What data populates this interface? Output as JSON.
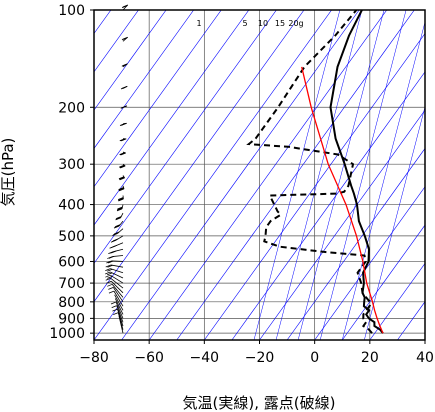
{
  "chart_data": {
    "type": "line",
    "subtype": "skew-T log-p diagram",
    "xlabel": "気温(実線), 露点(破線)",
    "ylabel": "気圧(hPa)",
    "xlim": [
      -80,
      40
    ],
    "ylim": [
      1050,
      100
    ],
    "yscale": "log",
    "x_ticks": [
      -80,
      -60,
      -40,
      -20,
      0,
      20,
      40
    ],
    "y_ticks": [
      100,
      200,
      300,
      400,
      500,
      600,
      700,
      800,
      900,
      1000
    ],
    "x_tick_labels": [
      "−80",
      "−60",
      "−40",
      "−20",
      "0",
      "20",
      "40"
    ],
    "y_tick_labels": [
      "100",
      "200",
      "300",
      "400",
      "500",
      "600",
      "700",
      "800",
      "900",
      "1000"
    ],
    "mixing_ratio_labels": [
      "1",
      "5",
      "10",
      "15",
      "20g"
    ],
    "colors": {
      "isotherm": "#0000ff",
      "parcel": "#ff0000",
      "sounding": "#000000",
      "grid": "#000000"
    },
    "series": [
      {
        "style": "solid",
        "color": "#000000",
        "points": [
          [
            1000,
            23
          ],
          [
            975,
            21
          ],
          [
            950,
            18
          ],
          [
            925,
            17
          ],
          [
            900,
            14
          ],
          [
            875,
            12
          ],
          [
            850,
            12
          ],
          [
            825,
            9
          ],
          [
            800,
            8
          ],
          [
            775,
            7
          ],
          [
            750,
            5
          ],
          [
            700,
            3
          ],
          [
            650,
            0
          ],
          [
            600,
            -1
          ],
          [
            550,
            -4
          ],
          [
            500,
            -9
          ],
          [
            450,
            -15
          ],
          [
            400,
            -20
          ],
          [
            370,
            -24
          ],
          [
            350,
            -27
          ],
          [
            300,
            -35
          ],
          [
            250,
            -45
          ],
          [
            200,
            -55
          ],
          [
            150,
            -63
          ],
          [
            120,
            -67
          ],
          [
            100,
            -69
          ]
        ]
      },
      {
        "style": "dashed",
        "color": "#000000",
        "points": [
          [
            1000,
            19
          ],
          [
            975,
            17
          ],
          [
            950,
            14
          ],
          [
            925,
            14
          ],
          [
            900,
            12
          ],
          [
            875,
            11
          ],
          [
            850,
            11
          ],
          [
            820,
            11
          ],
          [
            800,
            10
          ],
          [
            750,
            5
          ],
          [
            700,
            2
          ],
          [
            650,
            -2
          ],
          [
            600,
            -2
          ],
          [
            575,
            -4
          ],
          [
            560,
            -20
          ],
          [
            540,
            -37
          ],
          [
            520,
            -44
          ],
          [
            500,
            -45
          ],
          [
            470,
            -47
          ],
          [
            450,
            -47
          ],
          [
            430,
            -45
          ],
          [
            420,
            -47
          ],
          [
            400,
            -50
          ],
          [
            375,
            -54
          ],
          [
            370,
            -30
          ],
          [
            365,
            -28
          ],
          [
            350,
            -28
          ],
          [
            300,
            -32
          ],
          [
            280,
            -40
          ],
          [
            265,
            -60
          ],
          [
            260,
            -75
          ],
          [
            250,
            -74
          ],
          [
            200,
            -74
          ],
          [
            150,
            -75
          ],
          [
            120,
            -72
          ],
          [
            100,
            -71
          ]
        ]
      },
      {
        "style": "solid",
        "color": "#ff0000",
        "points": [
          [
            1000,
            23
          ],
          [
            950,
            20
          ],
          [
            900,
            17
          ],
          [
            850,
            14
          ],
          [
            800,
            11
          ],
          [
            700,
            4
          ],
          [
            600,
            -3
          ],
          [
            500,
            -12
          ],
          [
            400,
            -24
          ],
          [
            300,
            -41
          ],
          [
            200,
            -62
          ],
          [
            150,
            -76
          ]
        ]
      }
    ],
    "wind_barbs": [
      [
        1000,
        0,
        8
      ],
      [
        975,
        5,
        10
      ],
      [
        950,
        10,
        12
      ],
      [
        925,
        15,
        12
      ],
      [
        900,
        20,
        10
      ],
      [
        875,
        25,
        8
      ],
      [
        850,
        30,
        8
      ],
      [
        825,
        35,
        10
      ],
      [
        800,
        40,
        12
      ],
      [
        775,
        50,
        15
      ],
      [
        750,
        60,
        15
      ],
      [
        725,
        70,
        18
      ],
      [
        700,
        80,
        20
      ],
      [
        675,
        90,
        20
      ],
      [
        650,
        100,
        22
      ],
      [
        625,
        110,
        25
      ],
      [
        600,
        120,
        25
      ],
      [
        575,
        130,
        28
      ],
      [
        550,
        140,
        30
      ],
      [
        525,
        150,
        30
      ],
      [
        500,
        160,
        30
      ],
      [
        475,
        170,
        32
      ],
      [
        450,
        180,
        35
      ],
      [
        425,
        190,
        35
      ],
      [
        400,
        200,
        40
      ],
      [
        375,
        210,
        40
      ],
      [
        350,
        215,
        40
      ],
      [
        325,
        220,
        45
      ],
      [
        300,
        225,
        45
      ],
      [
        275,
        230,
        45
      ],
      [
        250,
        235,
        40
      ],
      [
        225,
        240,
        40
      ],
      [
        200,
        245,
        35
      ],
      [
        175,
        250,
        30
      ],
      [
        150,
        255,
        25
      ],
      [
        125,
        260,
        20
      ],
      [
        100,
        265,
        20
      ]
    ]
  }
}
